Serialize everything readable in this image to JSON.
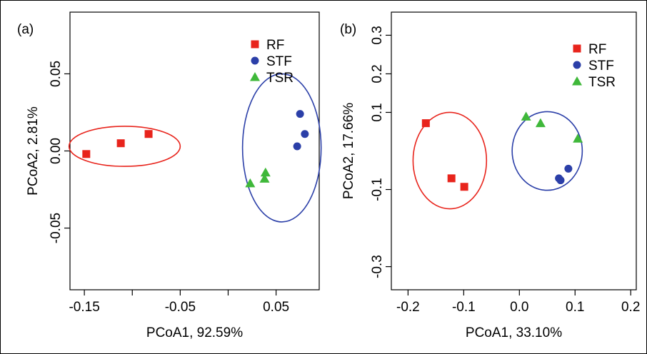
{
  "chart_data": [
    {
      "type": "scatter",
      "panel_label": "(a)",
      "xlabel": "PCoA1, 92.59%",
      "ylabel": "PCoA2, 2.81%",
      "xlim": [
        -0.165,
        0.095
      ],
      "ylim": [
        -0.09,
        0.09
      ],
      "xticks": [
        -0.15,
        -0.05,
        0.05
      ],
      "xtick_labels": [
        "-0.15",
        "-0.05",
        "0.05"
      ],
      "xminor": [
        -0.1,
        0.0
      ],
      "yticks": [
        -0.05,
        0.0,
        0.05
      ],
      "ytick_labels": [
        "-0.05",
        "0.00",
        "0.05"
      ],
      "legend": "top-right",
      "grid": false,
      "series": [
        {
          "name": "RF",
          "marker": "square",
          "color": "#e8241c",
          "points": [
            [
              -0.148,
              -0.002
            ],
            [
              -0.112,
              0.005
            ],
            [
              -0.083,
              0.011
            ]
          ]
        },
        {
          "name": "STF",
          "marker": "circle",
          "color": "#2b3fa8",
          "points": [
            [
              0.075,
              0.024
            ],
            [
              0.08,
              0.011
            ],
            [
              0.072,
              0.003
            ]
          ]
        },
        {
          "name": "TSR",
          "marker": "triangle",
          "color": "#3fb83a",
          "points": [
            [
              0.023,
              -0.021
            ],
            [
              0.039,
              -0.014
            ],
            [
              0.038,
              -0.018
            ]
          ]
        }
      ],
      "ellipses": [
        {
          "color": "#e8241c",
          "cx": -0.108,
          "cy": 0.003,
          "rx": 0.058,
          "ry": 0.013
        },
        {
          "color": "#2b3fa8",
          "cx": 0.056,
          "cy": 0.002,
          "rx": 0.041,
          "ry": 0.048
        }
      ]
    },
    {
      "type": "scatter",
      "panel_label": "(b)",
      "xlabel": "PCoA1, 33.10%",
      "ylabel": "PCoA2, 17.66%",
      "xlim": [
        -0.23,
        0.21
      ],
      "ylim": [
        -0.36,
        0.36
      ],
      "xticks": [
        -0.2,
        -0.1,
        0.0,
        0.1,
        0.2
      ],
      "xtick_labels": [
        "-0.2",
        "-0.1",
        "0.0",
        "0.1",
        "0.2"
      ],
      "xminor": [],
      "yticks": [
        -0.3,
        -0.1,
        0.1,
        0.2,
        0.3
      ],
      "ytick_labels": [
        "-0.3",
        "-0.1",
        "0.1",
        "0.2",
        "0.3"
      ],
      "legend": "top-right",
      "grid": false,
      "series": [
        {
          "name": "RF",
          "marker": "square",
          "color": "#e8241c",
          "points": [
            [
              -0.168,
              0.072
            ],
            [
              -0.122,
              -0.071
            ],
            [
              -0.099,
              -0.093
            ]
          ]
        },
        {
          "name": "STF",
          "marker": "circle",
          "color": "#2b3fa8",
          "points": [
            [
              0.088,
              -0.046
            ],
            [
              0.071,
              -0.071
            ],
            [
              0.074,
              -0.076
            ]
          ]
        },
        {
          "name": "TSR",
          "marker": "triangle",
          "color": "#3fb83a",
          "points": [
            [
              0.012,
              0.089
            ],
            [
              0.038,
              0.072
            ],
            [
              0.105,
              0.032
            ]
          ]
        }
      ],
      "ellipses": [
        {
          "color": "#e8241c",
          "cx": -0.125,
          "cy": -0.025,
          "rx": 0.066,
          "ry": 0.125
        },
        {
          "color": "#2b3fa8",
          "cx": 0.05,
          "cy": 0.0,
          "rx": 0.063,
          "ry": 0.102
        }
      ]
    }
  ]
}
